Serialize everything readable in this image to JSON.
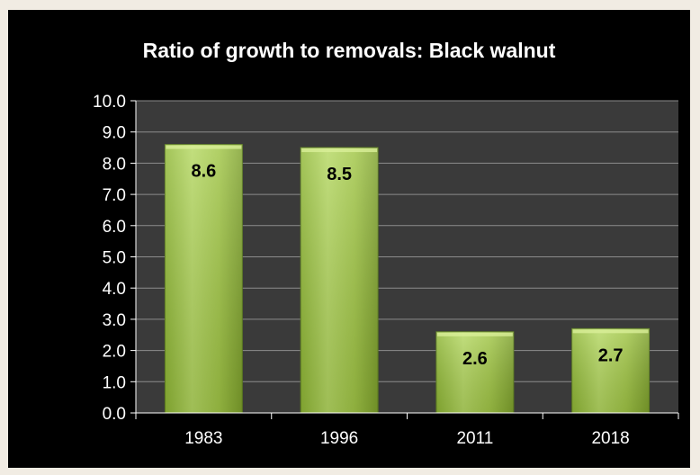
{
  "chart_data": {
    "type": "bar",
    "title": "Ratio of growth to removals:  Black walnut",
    "categories": [
      "1983",
      "1996",
      "2011",
      "2018"
    ],
    "values": [
      8.6,
      8.5,
      2.6,
      2.7
    ],
    "data_labels": [
      "8.6",
      "8.5",
      "2.6",
      "2.7"
    ],
    "y_tick_labels": [
      "0.0",
      "1.0",
      "2.0",
      "3.0",
      "4.0",
      "5.0",
      "6.0",
      "7.0",
      "8.0",
      "9.0",
      "10.0"
    ],
    "xlabel": "",
    "ylabel": "",
    "ylim": [
      0,
      10
    ],
    "ystep": 1,
    "grid": true,
    "legend": "none",
    "colors": {
      "background": "#000000",
      "plot_area": "#3a3a3a",
      "gridline": "#8c8c8c",
      "bar_light": "#c6e07a",
      "bar_mid": "#9bc33c",
      "bar_dark": "#6f9625",
      "text": "#ffffff",
      "label_text": "#000000"
    }
  }
}
